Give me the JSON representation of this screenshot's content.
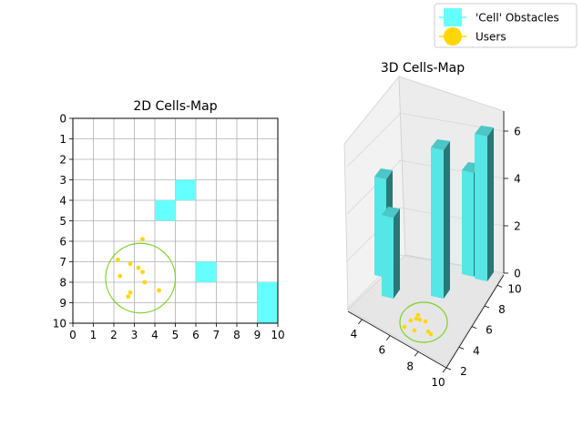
{
  "legend": {
    "placement": "top-right",
    "items": [
      {
        "label": "'Cell' Obstacles",
        "color": "#66ffff",
        "marker": "square"
      },
      {
        "label": "Users",
        "color": "#ffd700",
        "marker": "circle"
      }
    ]
  },
  "chart_data": [
    {
      "type": "heatmap",
      "title": "2D Cells-Map",
      "xlabel": "",
      "ylabel": "",
      "xlim": [
        0,
        10
      ],
      "ylim": [
        10,
        0
      ],
      "y_inverted": true,
      "grid": true,
      "xticks": [
        "0",
        "1",
        "2",
        "3",
        "4",
        "5",
        "6",
        "7",
        "8",
        "9",
        "10"
      ],
      "yticks": [
        "0",
        "1",
        "2",
        "3",
        "4",
        "5",
        "6",
        "7",
        "8",
        "9",
        "10"
      ],
      "obstacle_color": "#66ffff",
      "obstacles": [
        {
          "x": 5,
          "y": 3
        },
        {
          "x": 4,
          "y": 4
        },
        {
          "x": 6,
          "y": 7
        },
        {
          "x": 9,
          "y": 8
        },
        {
          "x": 9,
          "y": 9
        }
      ],
      "users_color": "#ffd700",
      "users": [
        {
          "x": 3.4,
          "y": 5.9
        },
        {
          "x": 2.2,
          "y": 6.9
        },
        {
          "x": 2.8,
          "y": 7.1
        },
        {
          "x": 3.2,
          "y": 7.3
        },
        {
          "x": 3.4,
          "y": 7.5
        },
        {
          "x": 2.3,
          "y": 7.7
        },
        {
          "x": 3.5,
          "y": 8.0
        },
        {
          "x": 2.8,
          "y": 8.5
        },
        {
          "x": 2.7,
          "y": 8.7
        },
        {
          "x": 4.2,
          "y": 8.4
        }
      ],
      "coverage_circle": {
        "cx": 3.3,
        "cy": 7.8,
        "r": 1.7,
        "color": "#7fd12a"
      }
    },
    {
      "type": "bar",
      "subtype": "3d-bar",
      "title": "3D Cells-Map",
      "xlabel": "",
      "ylabel": "",
      "xticks": [
        "4",
        "6",
        "8",
        "10"
      ],
      "yticks": [
        "2",
        "4",
        "6",
        "8",
        "10"
      ],
      "zticks": [
        "0",
        "2",
        "4",
        "6"
      ],
      "xlim": [
        3,
        10
      ],
      "ylim": [
        2,
        11
      ],
      "zlim": [
        0,
        7
      ],
      "bar_color": "#55e6e6",
      "bars": [
        {
          "x": 3.0,
          "y": 9.0,
          "height": 5
        },
        {
          "x": 4.0,
          "y": 9.0,
          "height": 4
        },
        {
          "x": 5.0,
          "y": 4.0,
          "height": 7
        },
        {
          "x": 7.0,
          "y": 3.0,
          "height": 5
        },
        {
          "x": 6.0,
          "y": 2.0,
          "height": 7
        }
      ],
      "users_color": "#ffd700",
      "coverage_circle_color": "#7fd12a"
    }
  ]
}
